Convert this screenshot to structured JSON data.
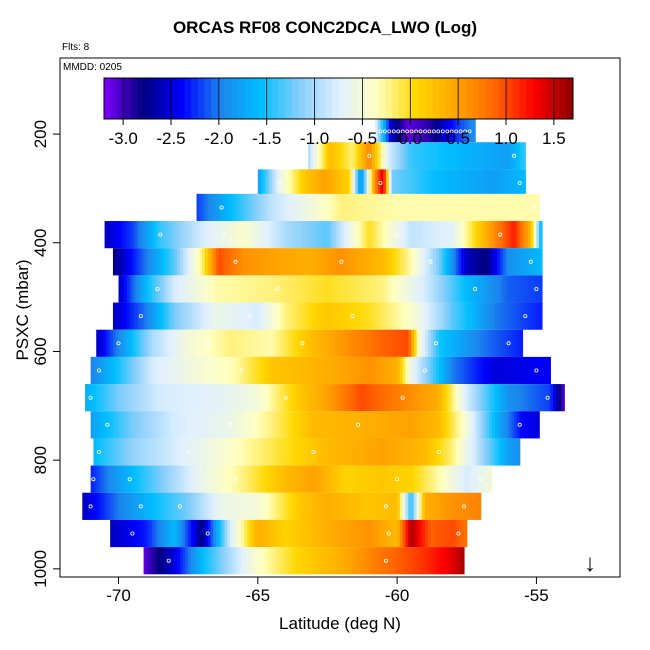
{
  "title": "ORCAS RF08 CONC2DCA_LWO (Log)",
  "flts_label": "Flts: 8",
  "mmdd_label": "MMDD: 0205",
  "arrow_glyph": "↓",
  "chart_data": {
    "type": "heatmap",
    "title": "ORCAS RF08 CONC2DCA_LWO (Log)",
    "xlabel": "Latitude (deg N)",
    "ylabel": "PSXC (mbar)",
    "xlim": [
      -72.1,
      -52.0
    ],
    "ylim": [
      1015,
      60
    ],
    "y_inverted": true,
    "x_ticks": [
      -70,
      -65,
      -60,
      -55
    ],
    "y_ticks": [
      200,
      400,
      600,
      800,
      1000
    ],
    "colorbar": {
      "range": [
        -3.2,
        1.7
      ],
      "ticks": [
        -3.0,
        -2.5,
        -2.0,
        -1.5,
        -1.0,
        -0.5,
        0.0,
        0.5,
        1.0,
        1.5
      ],
      "tick_labels": [
        "-3.0",
        "-2.5",
        "-2.0",
        "-1.5",
        "-1.0",
        "-0.5",
        "0.0",
        "0.5",
        "1.0",
        "1.5"
      ],
      "colors": [
        "#7f00ff",
        "#00007f",
        "#0000ff",
        "#1c86ee",
        "#00bfff",
        "#87cefa",
        "#e0f0ff",
        "#ffffc0",
        "#ffd700",
        "#ffa500",
        "#ff6600",
        "#ff0000",
        "#8b0000"
      ]
    },
    "grid": false,
    "rows": [
      {
        "p": 190,
        "x0": -60.8,
        "x1": -57.2,
        "knots": [
          [
            -60.8,
            -0.6
          ],
          [
            -60.2,
            -2.6
          ],
          [
            -59.6,
            -3.1
          ],
          [
            -58.8,
            -2.9
          ],
          [
            -57.8,
            -2.2
          ],
          [
            -57.2,
            -1.9
          ]
        ]
      },
      {
        "p": 240,
        "x0": -63.2,
        "x1": -55.4,
        "knots": [
          [
            -63.2,
            -1.0
          ],
          [
            -62.4,
            0.3
          ],
          [
            -61.6,
            -0.2
          ],
          [
            -61.0,
            0.7
          ],
          [
            -60.3,
            -0.8
          ],
          [
            -59.5,
            -1.4
          ],
          [
            -58.0,
            -1.6
          ],
          [
            -56.0,
            -1.8
          ],
          [
            -55.4,
            -1.4
          ]
        ]
      },
      {
        "p": 290,
        "x0": -65.0,
        "x1": -55.4,
        "knots": [
          [
            -65.0,
            -1.8
          ],
          [
            -64.2,
            -0.6
          ],
          [
            -63.3,
            0.2
          ],
          [
            -62.6,
            0.5
          ],
          [
            -61.7,
            0.1
          ],
          [
            -61.3,
            -2.0
          ],
          [
            -60.8,
            0.6
          ],
          [
            -60.5,
            1.5
          ],
          [
            -60.2,
            -1.2
          ],
          [
            -58.5,
            -1.6
          ],
          [
            -56.5,
            -1.8
          ],
          [
            -55.4,
            -1.6
          ]
        ]
      },
      {
        "p": 335,
        "x0": -67.2,
        "x1": -54.9,
        "knots": [
          [
            -67.2,
            -2.2
          ],
          [
            -66.0,
            -1.6
          ],
          [
            -64.5,
            -0.9
          ],
          [
            -63.0,
            -0.5
          ],
          [
            -62.0,
            -0.2
          ],
          [
            -60.0,
            -0.3
          ],
          [
            -58.0,
            -0.3
          ],
          [
            -56.0,
            -0.3
          ],
          [
            -54.9,
            -0.3
          ]
        ]
      },
      {
        "p": 385,
        "x0": -70.5,
        "x1": -54.8,
        "knots": [
          [
            -70.5,
            -2.6
          ],
          [
            -69.5,
            -2.2
          ],
          [
            -68.5,
            -1.4
          ],
          [
            -67.0,
            -0.8
          ],
          [
            -65.5,
            -0.4
          ],
          [
            -64.0,
            -1.0
          ],
          [
            -62.5,
            -1.3
          ],
          [
            -61.0,
            0.0
          ],
          [
            -59.5,
            -0.9
          ],
          [
            -58.0,
            -0.7
          ],
          [
            -56.8,
            0.4
          ],
          [
            -55.8,
            1.2
          ],
          [
            -55.2,
            0.3
          ],
          [
            -54.8,
            -1.8
          ]
        ]
      },
      {
        "p": 435,
        "x0": -70.2,
        "x1": -54.8,
        "knots": [
          [
            -70.2,
            -2.8
          ],
          [
            -69.0,
            -2.0
          ],
          [
            -68.0,
            -1.3
          ],
          [
            -67.0,
            -0.2
          ],
          [
            -66.4,
            1.0
          ],
          [
            -65.5,
            0.6
          ],
          [
            -64.5,
            0.5
          ],
          [
            -63.2,
            0.4
          ],
          [
            -62.0,
            0.6
          ],
          [
            -60.5,
            0.3
          ],
          [
            -59.5,
            -0.3
          ],
          [
            -58.5,
            -1.2
          ],
          [
            -57.5,
            -2.6
          ],
          [
            -56.8,
            -2.8
          ],
          [
            -56.0,
            -1.9
          ],
          [
            -54.8,
            -1.6
          ]
        ]
      },
      {
        "p": 485,
        "x0": -70.0,
        "x1": -54.8,
        "knots": [
          [
            -70.0,
            -2.6
          ],
          [
            -69.0,
            -1.6
          ],
          [
            -68.0,
            -0.8
          ],
          [
            -66.5,
            -0.3
          ],
          [
            -64.5,
            -0.2
          ],
          [
            -62.5,
            0.0
          ],
          [
            -60.5,
            -0.2
          ],
          [
            -59.0,
            -0.8
          ],
          [
            -57.5,
            -1.6
          ],
          [
            -56.0,
            -2.1
          ],
          [
            -54.8,
            -2.2
          ]
        ]
      },
      {
        "p": 535,
        "x0": -70.2,
        "x1": -54.8,
        "knots": [
          [
            -70.2,
            -2.6
          ],
          [
            -69.0,
            -2.0
          ],
          [
            -68.0,
            -1.2
          ],
          [
            -66.5,
            -0.6
          ],
          [
            -65.0,
            -0.8
          ],
          [
            -64.0,
            -0.2
          ],
          [
            -62.5,
            0.2
          ],
          [
            -61.0,
            0.0
          ],
          [
            -59.5,
            -0.4
          ],
          [
            -58.0,
            -1.3
          ],
          [
            -56.5,
            -2.0
          ],
          [
            -54.8,
            -2.3
          ]
        ]
      },
      {
        "p": 585,
        "x0": -70.8,
        "x1": -55.5,
        "knots": [
          [
            -70.8,
            -2.6
          ],
          [
            -69.8,
            -1.8
          ],
          [
            -68.8,
            -1.0
          ],
          [
            -67.5,
            -0.5
          ],
          [
            -66.0,
            -0.2
          ],
          [
            -64.5,
            -0.3
          ],
          [
            -63.0,
            0.3
          ],
          [
            -61.8,
            0.6
          ],
          [
            -60.5,
            0.9
          ],
          [
            -59.6,
            1.0
          ],
          [
            -59.2,
            -0.5
          ],
          [
            -58.5,
            -1.5
          ],
          [
            -57.0,
            -2.0
          ],
          [
            -55.5,
            -2.3
          ]
        ]
      },
      {
        "p": 635,
        "x0": -71.0,
        "x1": -54.5,
        "knots": [
          [
            -71.0,
            -2.0
          ],
          [
            -70.0,
            -1.5
          ],
          [
            -68.8,
            -0.8
          ],
          [
            -67.2,
            -0.5
          ],
          [
            -65.8,
            -0.3
          ],
          [
            -64.5,
            0.2
          ],
          [
            -62.5,
            0.4
          ],
          [
            -61.0,
            0.6
          ],
          [
            -60.0,
            0.4
          ],
          [
            -59.5,
            -0.6
          ],
          [
            -58.0,
            -2.0
          ],
          [
            -56.5,
            -2.5
          ],
          [
            -54.5,
            -2.4
          ]
        ]
      },
      {
        "p": 685,
        "x0": -71.2,
        "x1": -54.0,
        "knots": [
          [
            -71.2,
            -1.7
          ],
          [
            -70.0,
            -1.2
          ],
          [
            -68.5,
            -0.8
          ],
          [
            -66.5,
            -0.7
          ],
          [
            -65.0,
            -0.5
          ],
          [
            -63.5,
            0.2
          ],
          [
            -62.5,
            0.5
          ],
          [
            -61.3,
            1.0
          ],
          [
            -60.3,
            0.8
          ],
          [
            -58.5,
            0.4
          ],
          [
            -57.5,
            -0.8
          ],
          [
            -56.0,
            -1.9
          ],
          [
            -54.5,
            -2.2
          ],
          [
            -54.0,
            -3.1
          ]
        ]
      },
      {
        "p": 735,
        "x0": -71.0,
        "x1": -54.9,
        "knots": [
          [
            -71.0,
            -1.8
          ],
          [
            -69.5,
            -1.2
          ],
          [
            -68.0,
            -0.8
          ],
          [
            -66.0,
            -0.6
          ],
          [
            -64.5,
            -0.2
          ],
          [
            -63.0,
            0.3
          ],
          [
            -61.0,
            0.4
          ],
          [
            -59.5,
            0.5
          ],
          [
            -58.5,
            0.3
          ],
          [
            -57.5,
            -0.5
          ],
          [
            -56.5,
            -1.6
          ],
          [
            -55.5,
            -2.4
          ],
          [
            -54.9,
            -2.5
          ]
        ]
      },
      {
        "p": 785,
        "x0": -70.9,
        "x1": -55.6,
        "knots": [
          [
            -70.9,
            -1.6
          ],
          [
            -69.5,
            -1.1
          ],
          [
            -68.0,
            -0.8
          ],
          [
            -66.5,
            -0.5
          ],
          [
            -64.5,
            -0.1
          ],
          [
            -62.5,
            0.3
          ],
          [
            -60.5,
            0.5
          ],
          [
            -59.0,
            0.3
          ],
          [
            -58.0,
            -0.2
          ],
          [
            -57.0,
            -1.0
          ],
          [
            -56.0,
            -1.8
          ],
          [
            -55.6,
            -1.9
          ]
        ]
      },
      {
        "p": 835,
        "x0": -71.0,
        "x1": -56.6,
        "knots": [
          [
            -71.0,
            -2.3
          ],
          [
            -70.0,
            -1.8
          ],
          [
            -68.5,
            -1.2
          ],
          [
            -67.0,
            -0.6
          ],
          [
            -65.5,
            -0.2
          ],
          [
            -64.0,
            0.3
          ],
          [
            -63.0,
            0.5
          ],
          [
            -61.8,
            0.1
          ],
          [
            -60.5,
            0.2
          ],
          [
            -59.5,
            0.1
          ],
          [
            -58.5,
            -0.3
          ],
          [
            -57.5,
            -0.8
          ],
          [
            -56.6,
            -0.5
          ]
        ]
      },
      {
        "p": 885,
        "x0": -71.3,
        "x1": -57.0,
        "knots": [
          [
            -71.3,
            -2.6
          ],
          [
            -70.0,
            -2.0
          ],
          [
            -68.5,
            -1.5
          ],
          [
            -67.5,
            -1.2
          ],
          [
            -66.3,
            -0.6
          ],
          [
            -65.0,
            -0.5
          ],
          [
            -63.5,
            0.2
          ],
          [
            -62.5,
            0.4
          ],
          [
            -61.0,
            0.2
          ],
          [
            -60.0,
            0.3
          ],
          [
            -59.5,
            -1.5
          ],
          [
            -59.0,
            0.4
          ],
          [
            -58.0,
            0.6
          ],
          [
            -57.0,
            0.7
          ]
        ]
      },
      {
        "p": 935,
        "x0": -70.3,
        "x1": -57.5,
        "knots": [
          [
            -70.3,
            -2.6
          ],
          [
            -69.0,
            -2.3
          ],
          [
            -68.0,
            -1.6
          ],
          [
            -67.0,
            -2.8
          ],
          [
            -66.0,
            -0.8
          ],
          [
            -65.0,
            0.4
          ],
          [
            -64.0,
            0.1
          ],
          [
            -62.5,
            0.4
          ],
          [
            -61.0,
            0.6
          ],
          [
            -60.0,
            0.3
          ],
          [
            -59.5,
            1.6
          ],
          [
            -58.8,
            0.9
          ],
          [
            -58.0,
            1.0
          ],
          [
            -57.5,
            0.8
          ]
        ]
      },
      {
        "p": 985,
        "x0": -69.1,
        "x1": -57.6,
        "knots": [
          [
            -69.1,
            -3.1
          ],
          [
            -68.0,
            -2.5
          ],
          [
            -67.0,
            -1.6
          ],
          [
            -66.0,
            -1.0
          ],
          [
            -65.0,
            -0.4
          ],
          [
            -63.5,
            0.1
          ],
          [
            -62.0,
            0.4
          ],
          [
            -60.5,
            0.8
          ],
          [
            -59.0,
            1.1
          ],
          [
            -58.0,
            1.4
          ],
          [
            -57.6,
            1.6
          ]
        ]
      }
    ],
    "sample_points": [
      [
        -68.5,
        385
      ],
      [
        -66.2,
        385
      ],
      [
        -60.0,
        385
      ],
      [
        -56.3,
        385
      ],
      [
        -65.8,
        435
      ],
      [
        -62.0,
        435
      ],
      [
        -58.8,
        435
      ],
      [
        -55.2,
        435
      ],
      [
        -68.6,
        485
      ],
      [
        -64.3,
        485
      ],
      [
        -57.2,
        485
      ],
      [
        -55.0,
        485
      ],
      [
        -69.2,
        535
      ],
      [
        -65.3,
        535
      ],
      [
        -61.6,
        535
      ],
      [
        -55.4,
        535
      ],
      [
        -70.0,
        585
      ],
      [
        -66.8,
        585
      ],
      [
        -63.4,
        585
      ],
      [
        -58.6,
        585
      ],
      [
        -56.0,
        585
      ],
      [
        -70.7,
        635
      ],
      [
        -65.6,
        635
      ],
      [
        -59.0,
        635
      ],
      [
        -55.0,
        635
      ],
      [
        -71.0,
        685
      ],
      [
        -64.0,
        685
      ],
      [
        -59.8,
        685
      ],
      [
        -54.6,
        685
      ],
      [
        -70.4,
        735
      ],
      [
        -66.0,
        735
      ],
      [
        -61.4,
        735
      ],
      [
        -55.6,
        735
      ],
      [
        -70.7,
        785
      ],
      [
        -67.5,
        785
      ],
      [
        -63.0,
        785
      ],
      [
        -58.5,
        785
      ],
      [
        -70.9,
        835
      ],
      [
        -69.6,
        835
      ],
      [
        -65.8,
        835
      ],
      [
        -60.0,
        835
      ],
      [
        -57.0,
        835
      ],
      [
        -71.0,
        885
      ],
      [
        -69.2,
        885
      ],
      [
        -67.8,
        885
      ],
      [
        -60.4,
        885
      ],
      [
        -57.6,
        885
      ],
      [
        -69.5,
        935
      ],
      [
        -66.8,
        935
      ],
      [
        -60.3,
        935
      ],
      [
        -57.8,
        935
      ],
      [
        -68.2,
        985
      ],
      [
        -60.4,
        985
      ],
      [
        -63.4,
        240
      ],
      [
        -61.0,
        240
      ],
      [
        -55.8,
        240
      ],
      [
        -64.2,
        290
      ],
      [
        -60.6,
        290
      ],
      [
        -55.6,
        290
      ],
      [
        -66.3,
        335
      ],
      [
        -55.1,
        335
      ]
    ]
  }
}
